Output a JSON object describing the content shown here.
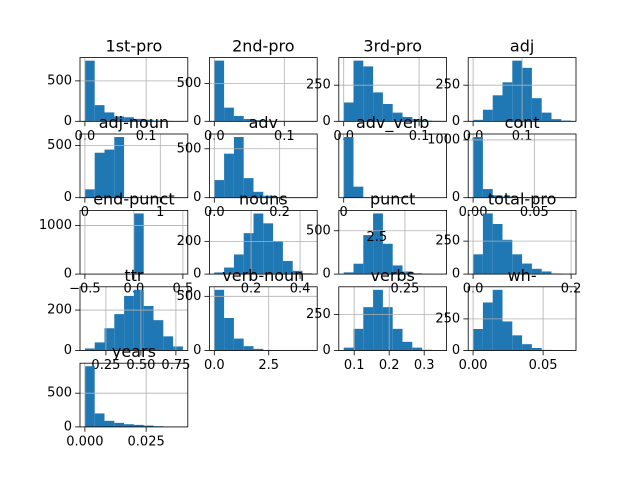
{
  "chart_data": [
    {
      "type": "histogram",
      "title": "1st-pro",
      "bins": [
        0,
        0.016,
        0.032,
        0.048,
        0.064,
        0.08,
        0.096,
        0.112,
        0.128,
        0.144,
        0.16
      ],
      "counts": [
        750,
        200,
        110,
        60,
        50,
        30,
        20,
        10,
        5,
        3
      ],
      "color": "#1f77b4",
      "xlim": [
        -0.008,
        0.168
      ],
      "ylim": [
        0,
        788
      ],
      "xticks": [
        {
          "value": 0,
          "label": "0.0"
        },
        0.1
      ],
      "yticks": [
        0,
        500
      ],
      "grid": true
    },
    {
      "type": "histogram",
      "title": "2nd-pro",
      "bins": [
        0,
        0.014,
        0.028,
        0.042,
        0.056,
        0.07,
        0.084,
        0.098,
        0.112,
        0.126,
        0.14
      ],
      "counts": [
        800,
        180,
        70,
        30,
        15,
        8,
        5,
        3,
        1,
        1
      ],
      "color": "#1f77b4",
      "xlim": [
        -0.007,
        0.147
      ],
      "ylim": [
        0,
        840
      ],
      "xticks": [
        {
          "value": 0,
          "label": "0.0"
        },
        0.1
      ],
      "yticks": [
        0,
        500
      ],
      "grid": true
    },
    {
      "type": "histogram",
      "title": "3rd-pro",
      "bins": [
        0,
        0.013,
        0.026,
        0.039,
        0.052,
        0.065,
        0.078,
        0.091,
        0.104,
        0.117,
        0.13
      ],
      "counts": [
        130,
        420,
        380,
        200,
        120,
        60,
        30,
        15,
        5,
        3
      ],
      "color": "#1f77b4",
      "xlim": [
        -0.0065,
        0.1365
      ],
      "ylim": [
        0,
        441
      ],
      "xticks": [
        {
          "value": 0,
          "label": "0.0"
        },
        0.1
      ],
      "yticks": [
        0,
        250
      ],
      "grid": true
    },
    {
      "type": "histogram",
      "title": "adj",
      "bins": [
        0,
        0.02,
        0.04,
        0.06,
        0.08,
        0.1,
        0.12,
        0.14,
        0.16,
        0.18,
        0.2
      ],
      "counts": [
        10,
        80,
        180,
        270,
        420,
        370,
        160,
        60,
        15,
        5
      ],
      "color": "#1f77b4",
      "xlim": [
        -0.01,
        0.21
      ],
      "ylim": [
        0,
        441
      ],
      "xticks": [
        {
          "value": 0,
          "label": "0.0"
        },
        0.1
      ],
      "yticks": [
        0,
        250
      ],
      "grid": true
    },
    {
      "type": "histogram",
      "title": "adj-noun",
      "bins": [
        0,
        0.13,
        0.26,
        0.39,
        0.52,
        0.65,
        0.78,
        0.91,
        1.04,
        1.17,
        1.3
      ],
      "counts": [
        80,
        430,
        460,
        580,
        5,
        2,
        1,
        1,
        0,
        1
      ],
      "color": "#1f77b4",
      "xlim": [
        -0.065,
        1.365
      ],
      "ylim": [
        0,
        609
      ],
      "xticks": [
        0,
        1
      ],
      "yticks": [
        0,
        500
      ],
      "grid": true
    },
    {
      "type": "histogram",
      "title": "adv",
      "bins": [
        0,
        0.03,
        0.06,
        0.09,
        0.12,
        0.15,
        0.18,
        0.21,
        0.24,
        0.27,
        0.3
      ],
      "counts": [
        180,
        450,
        620,
        200,
        60,
        20,
        5,
        2,
        1,
        1
      ],
      "color": "#1f77b4",
      "xlim": [
        -0.015,
        0.315
      ],
      "ylim": [
        0,
        651
      ],
      "xticks": [
        {
          "value": 0,
          "label": "0.0"
        },
        0.2
      ],
      "yticks": [
        0,
        500
      ],
      "grid": true
    },
    {
      "type": "histogram",
      "title": "adv_verb",
      "bins": [
        0,
        0.15,
        0.3,
        0.45,
        0.6,
        0.75,
        0.9,
        1.05,
        1.2,
        1.35,
        1.5
      ],
      "counts": [
        880,
        160,
        5,
        2,
        1,
        0,
        0,
        0,
        0,
        1
      ],
      "color": "#1f77b4",
      "xlim": [
        -0.075,
        1.575
      ],
      "ylim": [
        0,
        924
      ],
      "xticks": [
        0
      ],
      "yticks": [],
      "grid": true
    },
    {
      "type": "histogram",
      "title": "cont",
      "bins": [
        0,
        0.008,
        0.016,
        0.024,
        0.032,
        0.04,
        0.048,
        0.056,
        0.064,
        0.072,
        0.08
      ],
      "counts": [
        1050,
        150,
        40,
        20,
        10,
        5,
        3,
        2,
        1,
        1
      ],
      "color": "#1f77b4",
      "xlim": [
        -0.004,
        0.084
      ],
      "ylim": [
        0,
        1103
      ],
      "xticks": [
        {
          "value": 0,
          "label": "0.00"
        },
        0.05
      ],
      "yticks": [
        0,
        1000
      ],
      "grid": true
    },
    {
      "type": "histogram",
      "title": "end-punct",
      "bins": [
        -0.5,
        -0.4,
        -0.3,
        -0.2,
        -0.1,
        0,
        0.1,
        0.2,
        0.3,
        0.4,
        0.5
      ],
      "counts": [
        0,
        0,
        0,
        0,
        0,
        1250,
        0,
        0,
        0,
        0
      ],
      "color": "#1f77b4",
      "xlim": [
        -0.55,
        0.55
      ],
      "ylim": [
        0,
        1313
      ],
      "xticks": [
        {
          "value": -0.5,
          "label": "−0.5"
        },
        {
          "value": 0,
          "label": "0.0"
        },
        0.5
      ],
      "yticks": [
        0,
        1000
      ],
      "grid": true
    },
    {
      "type": "histogram",
      "title": "nouns",
      "bins": [
        0.05,
        0.09,
        0.13,
        0.17,
        0.21,
        0.25,
        0.29,
        0.33,
        0.37,
        0.41,
        0.45
      ],
      "counts": [
        10,
        40,
        120,
        250,
        370,
        310,
        200,
        80,
        20,
        5
      ],
      "color": "#1f77b4",
      "xlim": [
        0.03,
        0.47
      ],
      "ylim": [
        0,
        389
      ],
      "xticks": [
        0.2,
        0.4
      ],
      "yticks": [
        0,
        200
      ],
      "grid": true
    },
    {
      "type": "histogram",
      "title": "punct",
      "annotation": "2.5",
      "bins": [
        0,
        0.04,
        0.08,
        0.12,
        0.16,
        0.2,
        0.24,
        0.28,
        0.32,
        0.36,
        0.4
      ],
      "counts": [
        20,
        120,
        450,
        700,
        350,
        100,
        30,
        10,
        3,
        1
      ],
      "color": "#1f77b4",
      "xlim": [
        -0.02,
        0.42
      ],
      "ylim": [
        0,
        735
      ],
      "xticks": [
        0.25
      ],
      "yticks": [
        0,
        500
      ],
      "grid": true
    },
    {
      "type": "histogram",
      "title": "total-pro",
      "bins": [
        0,
        0.02,
        0.04,
        0.06,
        0.08,
        0.1,
        0.12,
        0.14,
        0.16,
        0.18,
        0.2
      ],
      "counts": [
        150,
        460,
        380,
        260,
        150,
        80,
        40,
        20,
        5,
        2
      ],
      "color": "#1f77b4",
      "xlim": [
        -0.01,
        0.21
      ],
      "ylim": [
        0,
        483
      ],
      "xticks": [
        {
          "value": 0,
          "label": "0.0"
        },
        0.2
      ],
      "yticks": [
        0,
        250
      ],
      "grid": true
    },
    {
      "type": "histogram",
      "title": "ttr",
      "bins": [
        0.1,
        0.17,
        0.24,
        0.31,
        0.38,
        0.45,
        0.52,
        0.59,
        0.66,
        0.73,
        0.8
      ],
      "counts": [
        10,
        40,
        110,
        180,
        270,
        300,
        220,
        150,
        70,
        20
      ],
      "color": "#1f77b4",
      "xlim": [
        0.065,
        0.835
      ],
      "ylim": [
        0,
        315
      ],
      "xticks": [
        0.25,
        {
          "value": 0.5,
          "label": "0.50"
        },
        0.75
      ],
      "yticks": [
        0,
        200
      ],
      "grid": true
    },
    {
      "type": "histogram",
      "title": "verb-noun",
      "bins": [
        0,
        0.45,
        0.9,
        1.35,
        1.8,
        2.25,
        2.7,
        3.15,
        3.6,
        4.05,
        4.5
      ],
      "counts": [
        560,
        300,
        110,
        40,
        15,
        5,
        2,
        1,
        1,
        1
      ],
      "color": "#1f77b4",
      "xlim": [
        -0.225,
        4.725
      ],
      "ylim": [
        0,
        588
      ],
      "xticks": [
        {
          "value": 0,
          "label": "0.0"
        },
        2.5
      ],
      "yticks": [
        0,
        500
      ],
      "grid": true
    },
    {
      "type": "histogram",
      "title": "verbs",
      "bins": [
        0.07,
        0.098,
        0.126,
        0.154,
        0.182,
        0.21,
        0.238,
        0.266,
        0.294,
        0.322,
        0.35
      ],
      "counts": [
        20,
        150,
        300,
        420,
        300,
        150,
        60,
        20,
        5,
        2
      ],
      "color": "#1f77b4",
      "xlim": [
        0.056,
        0.364
      ],
      "ylim": [
        0,
        441
      ],
      "xticks": [
        0.1,
        0.2,
        0.3
      ],
      "yticks": [
        0,
        250
      ],
      "grid": true
    },
    {
      "type": "histogram",
      "title": "wh-",
      "bins": [
        0,
        0.007,
        0.014,
        0.021,
        0.028,
        0.035,
        0.042,
        0.049,
        0.056,
        0.063,
        0.07
      ],
      "counts": [
        170,
        380,
        480,
        230,
        120,
        50,
        20,
        5,
        2,
        3
      ],
      "color": "#1f77b4",
      "xlim": [
        -0.0035,
        0.0735
      ],
      "ylim": [
        0,
        504
      ],
      "xticks": [
        {
          "value": 0,
          "label": "0.00"
        },
        0.05
      ],
      "yticks": [
        0,
        250
      ],
      "grid": true
    },
    {
      "type": "histogram",
      "title": "years",
      "bins": [
        0,
        0.004,
        0.008,
        0.012,
        0.016,
        0.02,
        0.024,
        0.028,
        0.032,
        0.036,
        0.04
      ],
      "counts": [
        900,
        200,
        90,
        60,
        40,
        30,
        20,
        10,
        5,
        3
      ],
      "color": "#1f77b4",
      "xlim": [
        -0.002,
        0.042
      ],
      "ylim": [
        0,
        945
      ],
      "xticks": [
        {
          "value": 0,
          "label": "0.000"
        },
        0.025
      ],
      "yticks": [
        0,
        500
      ],
      "grid": true
    }
  ]
}
